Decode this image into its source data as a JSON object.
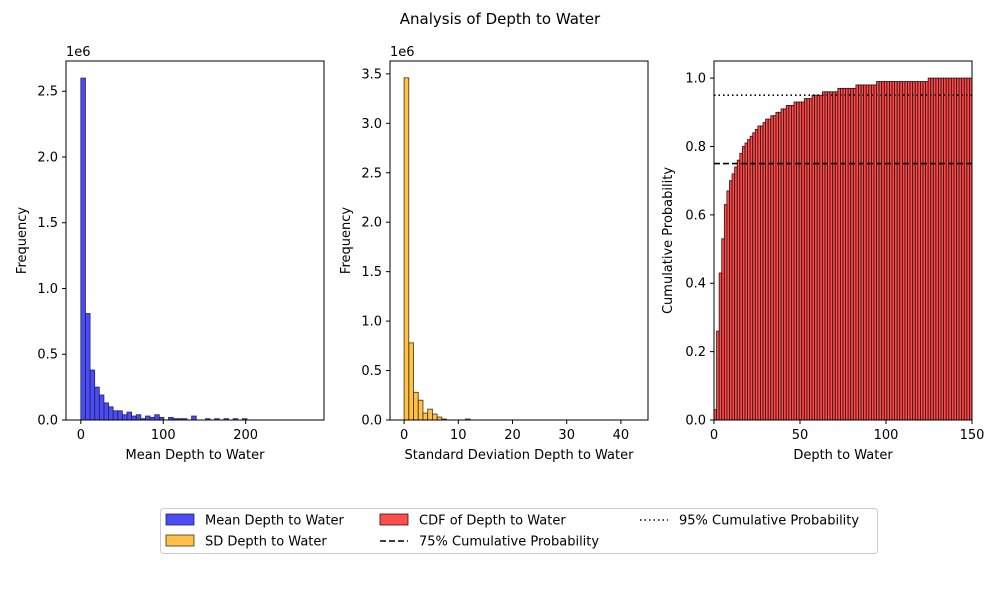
{
  "figure": {
    "title": "Analysis of Depth to Water"
  },
  "chart_data": [
    {
      "type": "bar",
      "subtype": "histogram",
      "xlabel": "Mean Depth to Water",
      "ylabel": "Frequency",
      "y_offset_text": "1e6",
      "xlim": [
        -18,
        295
      ],
      "ylim": [
        0,
        2.73
      ],
      "y_scale_note": "values in units of 1e6",
      "xticks": [
        0,
        100,
        200
      ],
      "yticks": [
        0.0,
        0.5,
        1.0,
        1.5,
        2.0,
        2.5
      ],
      "color": "#0000ee",
      "bin_width": 5.6,
      "bins_start": 0,
      "values": [
        2.6,
        0.81,
        0.38,
        0.25,
        0.19,
        0.13,
        0.1,
        0.07,
        0.07,
        0.04,
        0.06,
        0.03,
        0.04,
        0.01,
        0.03,
        0.02,
        0.04,
        0.02,
        0.0,
        0.02,
        0.01,
        0.01,
        0.01,
        0.0,
        0.03,
        0.0,
        0.0,
        0.01,
        0.0,
        0.01,
        0.0,
        0.01,
        0.0,
        0.01,
        0.0,
        0.01,
        0.0,
        0.0,
        0.0,
        0.0,
        0.0,
        0.0,
        0.0,
        0.0,
        0.0,
        0.0,
        0.0,
        0.0,
        0.0,
        0.0
      ]
    },
    {
      "type": "bar",
      "subtype": "histogram",
      "xlabel": "Standard Deviation Depth to Water",
      "ylabel": "Frequency",
      "y_offset_text": "1e6",
      "xlim": [
        -2.6,
        45
      ],
      "ylim": [
        0,
        3.63
      ],
      "xticks": [
        0,
        10,
        20,
        30,
        40
      ],
      "yticks": [
        0.0,
        0.5,
        1.0,
        1.5,
        2.0,
        2.5,
        3.0,
        3.5
      ],
      "color": "#ffa500",
      "bin_width": 0.87,
      "bins_start": 0,
      "values": [
        3.46,
        0.78,
        0.28,
        0.2,
        0.07,
        0.11,
        0.06,
        0.03,
        0.01,
        0.0,
        0.0,
        0.0,
        0.0,
        0.01,
        0.0,
        0.0,
        0.0,
        0.0,
        0.0,
        0.0,
        0.0,
        0.0,
        0.0,
        0.0,
        0.0,
        0.0,
        0.0,
        0.0,
        0.0,
        0.0,
        0.0,
        0.0,
        0.0,
        0.0,
        0.0,
        0.0,
        0.0,
        0.0,
        0.0,
        0.0,
        0.0,
        0.0,
        0.0,
        0.0,
        0.0,
        0.0,
        0.0,
        0.0,
        0.0,
        0.0
      ]
    },
    {
      "type": "bar",
      "subtype": "cumulative histogram",
      "xlabel": "Depth to Water",
      "ylabel": "Cumulative Probability",
      "xlim": [
        0,
        150
      ],
      "ylim": [
        0,
        1.05
      ],
      "xticks": [
        0,
        50,
        100,
        150
      ],
      "yticks": [
        0.0,
        0.2,
        0.4,
        0.6,
        0.8,
        1.0
      ],
      "color": "#ff0000",
      "bin_width": 1.5,
      "bins_start": 0,
      "values": [
        0.03,
        0.26,
        0.43,
        0.53,
        0.63,
        0.67,
        0.7,
        0.72,
        0.74,
        0.76,
        0.78,
        0.8,
        0.81,
        0.82,
        0.83,
        0.84,
        0.85,
        0.86,
        0.86,
        0.87,
        0.88,
        0.88,
        0.89,
        0.89,
        0.9,
        0.9,
        0.91,
        0.91,
        0.92,
        0.92,
        0.92,
        0.93,
        0.93,
        0.93,
        0.93,
        0.94,
        0.94,
        0.94,
        0.95,
        0.95,
        0.95,
        0.95,
        0.96,
        0.96,
        0.96,
        0.96,
        0.96,
        0.96,
        0.97,
        0.97,
        0.97,
        0.97,
        0.97,
        0.97,
        0.97,
        0.98,
        0.98,
        0.98,
        0.98,
        0.98,
        0.98,
        0.98,
        0.98,
        0.99,
        0.99,
        0.99,
        0.99,
        0.99,
        0.99,
        0.99,
        0.99,
        0.99,
        0.99,
        0.99,
        0.99,
        0.99,
        0.99,
        0.99,
        0.99,
        0.99,
        0.99,
        0.99,
        0.99,
        1.0,
        1.0,
        1.0,
        1.0,
        1.0,
        1.0,
        1.0,
        1.0,
        1.0,
        1.0,
        1.0,
        1.0,
        1.0,
        1.0,
        1.0,
        1.0,
        1.0
      ],
      "hlines": [
        {
          "y": 0.75,
          "style": "dashed",
          "label": "75% Cumulative Probability"
        },
        {
          "y": 0.95,
          "style": "dotted",
          "label": "95% Cumulative Probability"
        }
      ]
    }
  ],
  "legend": {
    "placement": "bottom-center",
    "items": [
      {
        "label": "Mean Depth to Water",
        "kind": "patch",
        "color": "#0000ee"
      },
      {
        "label": "SD Depth to Water",
        "kind": "patch",
        "color": "#ffa500"
      },
      {
        "label": "CDF of Depth to Water",
        "kind": "patch",
        "color": "#ff0000"
      },
      {
        "label": "75% Cumulative Probability",
        "kind": "dashed"
      },
      {
        "label": "95% Cumulative Probability",
        "kind": "dotted"
      }
    ]
  }
}
